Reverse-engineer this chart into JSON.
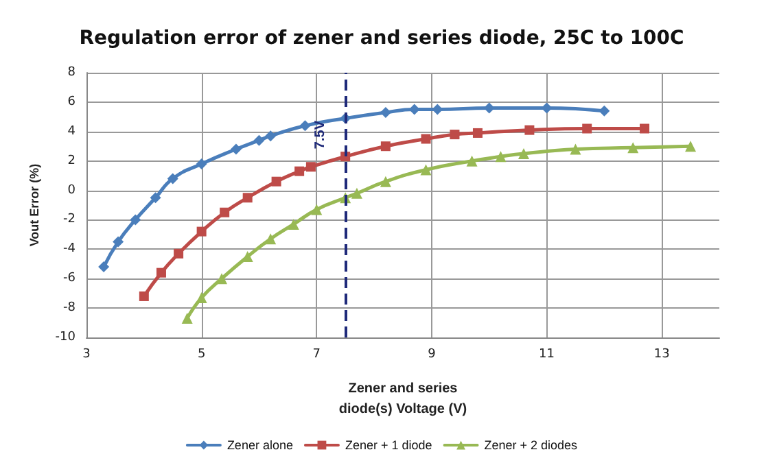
{
  "chart_data": {
    "type": "line",
    "title": "Regulation error of zener and series diode, 25C to 100C",
    "xlabel": "Zener and series\ndiode(s) Voltage (V)",
    "ylabel": "Vout Error (%)",
    "xlim": [
      3,
      14
    ],
    "xticks": [
      3,
      5,
      7,
      9,
      11,
      13
    ],
    "ylim": [
      -10,
      8
    ],
    "yticks": [
      -10,
      -8,
      -6,
      -4,
      -2,
      0,
      2,
      4,
      6,
      8
    ],
    "grid": true,
    "legend": "bottom",
    "line_style": "solid",
    "ref_lines": [
      {
        "axis": "x",
        "value": 7.5,
        "label": "7.5V",
        "color": "#1f2a7a",
        "line_style": "dashed"
      }
    ],
    "series": [
      {
        "name": "Zener alone",
        "color": "#4a7ebb",
        "marker": "diamond",
        "x": [
          3.3,
          3.55,
          3.85,
          4.2,
          4.5,
          5.0,
          5.6,
          6.0,
          6.2,
          6.8,
          7.5,
          8.2,
          8.7,
          9.1,
          10.0,
          11.0,
          12.0
        ],
        "values": [
          -5.2,
          -3.5,
          -2.0,
          -0.5,
          0.8,
          1.8,
          2.8,
          3.4,
          3.7,
          4.4,
          4.9,
          5.3,
          5.5,
          5.5,
          5.6,
          5.6,
          5.4
        ]
      },
      {
        "name": "Zener + 1 diode",
        "color": "#be4b48",
        "marker": "square",
        "x": [
          4.0,
          4.3,
          4.6,
          5.0,
          5.4,
          5.8,
          6.3,
          6.7,
          6.9,
          7.5,
          8.2,
          8.9,
          9.4,
          9.8,
          10.7,
          11.7,
          12.7
        ],
        "values": [
          -7.2,
          -5.6,
          -4.3,
          -2.8,
          -1.5,
          -0.5,
          0.6,
          1.3,
          1.6,
          2.3,
          3.0,
          3.5,
          3.8,
          3.9,
          4.1,
          4.2,
          4.2
        ]
      },
      {
        "name": "Zener + 2 diodes",
        "color": "#98b954",
        "marker": "triangle",
        "x": [
          4.75,
          5.0,
          5.35,
          5.8,
          6.2,
          6.6,
          7.0,
          7.5,
          7.7,
          8.2,
          8.9,
          9.7,
          10.2,
          10.6,
          11.5,
          12.5,
          13.5
        ],
        "values": [
          -8.7,
          -7.3,
          -6.0,
          -4.5,
          -3.3,
          -2.3,
          -1.3,
          -0.5,
          -0.2,
          0.6,
          1.4,
          2.0,
          2.3,
          2.5,
          2.8,
          2.9,
          3.0
        ]
      }
    ]
  }
}
